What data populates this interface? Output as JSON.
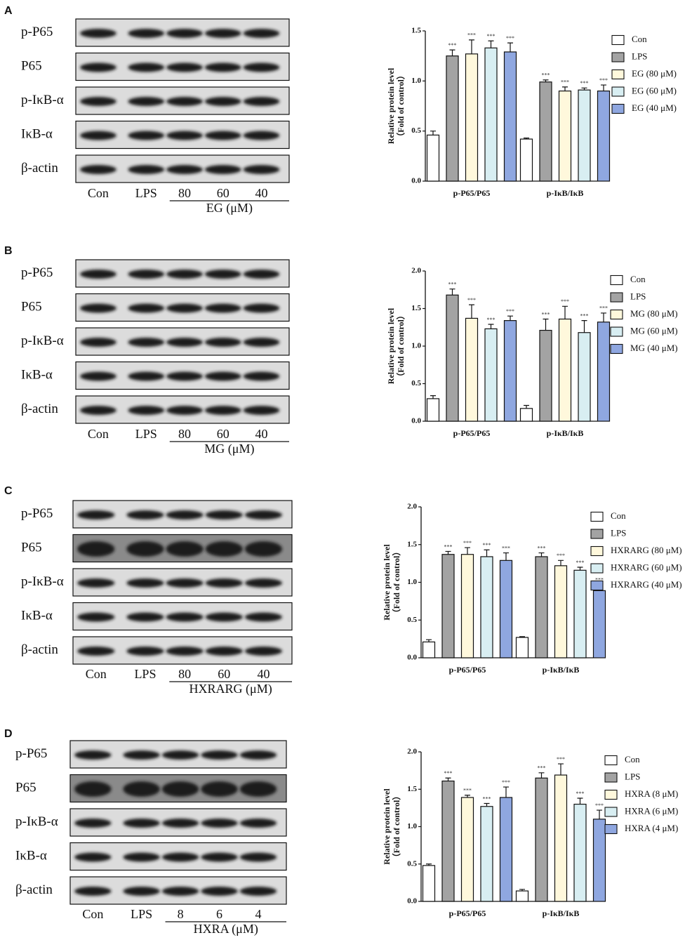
{
  "panels": [
    {
      "label": "A",
      "blot": {
        "rows": [
          "p-P65",
          "P65",
          "p-IκB-α",
          "IκB-α",
          "β-actin"
        ],
        "lanes": [
          "Con",
          "LPS",
          "80",
          "60",
          "40"
        ],
        "group": "EG (μM)"
      }
    },
    {
      "label": "B",
      "blot": {
        "rows": [
          "p-P65",
          "P65",
          "p-IκB-α",
          "IκB-α",
          "β-actin"
        ],
        "lanes": [
          "Con",
          "LPS",
          "80",
          "60",
          "40"
        ],
        "group": "MG (μM)"
      }
    },
    {
      "label": "C",
      "blot": {
        "rows": [
          "p-P65",
          "P65",
          "p-IκB-α",
          "IκB-α",
          "β-actin"
        ],
        "lanes": [
          "Con",
          "LPS",
          "80",
          "60",
          "40"
        ],
        "group": "HXRARG (μM)"
      }
    },
    {
      "label": "D",
      "blot": {
        "rows": [
          "p-P65",
          "P65",
          "p-IκB-α",
          "IκB-α",
          "β-actin"
        ],
        "lanes": [
          "Con",
          "LPS",
          "8",
          "6",
          "4"
        ],
        "group": "HXRA (μM)"
      }
    }
  ],
  "chart_data": [
    {
      "type": "bar",
      "y_label": [
        "Relative protein level",
        "（Fold of control）"
      ],
      "categories": [
        "p-P65/P65",
        "p-IκB/IκB"
      ],
      "ylim": [
        0,
        1.5
      ],
      "yticks": [
        {
          "value": 0,
          "label": "0.0"
        },
        {
          "value": 0.5,
          "label": "0.5"
        },
        {
          "value": 1,
          "label": "1.0"
        },
        {
          "value": 1.5,
          "label": "1.5"
        }
      ],
      "series": [
        {
          "name": "Con",
          "color": "#ffffff",
          "values": [
            0.46,
            0.42
          ],
          "errors": [
            0.04,
            0.01
          ]
        },
        {
          "name": "LPS",
          "color": "#a3a3a3",
          "values": [
            1.25,
            0.99
          ],
          "errors": [
            0.06,
            0.02
          ],
          "annotations": [
            "***",
            "***"
          ]
        },
        {
          "name": "EG (80 μM)",
          "color": "#fff8dc",
          "values": [
            1.27,
            0.9
          ],
          "errors": [
            0.14,
            0.04
          ],
          "annotations": [
            "***",
            "***"
          ]
        },
        {
          "name": "EG (60 μM)",
          "color": "#d8eef2",
          "values": [
            1.33,
            0.91
          ],
          "errors": [
            0.07,
            0.02
          ],
          "annotations": [
            "***",
            "***"
          ]
        },
        {
          "name": "EG (40 μM)",
          "color": "#8fa7e0",
          "values": [
            1.29,
            0.9
          ],
          "errors": [
            0.09,
            0.06
          ],
          "annotations": [
            "***",
            "***"
          ]
        }
      ]
    },
    {
      "type": "bar",
      "y_label": [
        "Relative protein level",
        "（Fold of control）"
      ],
      "categories": [
        "p-P65/P65",
        "p-IκB/IκB"
      ],
      "ylim": [
        0,
        2
      ],
      "yticks": [
        {
          "value": 0,
          "label": "0.0"
        },
        {
          "value": 0.5,
          "label": "0.5"
        },
        {
          "value": 1,
          "label": "1.0"
        },
        {
          "value": 1.5,
          "label": "1.5"
        },
        {
          "value": 2,
          "label": "2.0"
        }
      ],
      "series": [
        {
          "name": "Con",
          "color": "#ffffff",
          "values": [
            0.3,
            0.17
          ],
          "errors": [
            0.04,
            0.04
          ]
        },
        {
          "name": "LPS",
          "color": "#a3a3a3",
          "values": [
            1.68,
            1.21
          ],
          "errors": [
            0.08,
            0.15
          ],
          "annotations": [
            "***",
            "***"
          ]
        },
        {
          "name": "MG (80 μM)",
          "color": "#fff8dc",
          "values": [
            1.37,
            1.36
          ],
          "errors": [
            0.18,
            0.17
          ],
          "annotations": [
            "***",
            "***"
          ]
        },
        {
          "name": "MG (60 μM)",
          "color": "#d8eef2",
          "values": [
            1.23,
            1.18
          ],
          "errors": [
            0.06,
            0.16
          ],
          "annotations": [
            "***",
            "***"
          ]
        },
        {
          "name": "MG (40 μM)",
          "color": "#8fa7e0",
          "values": [
            1.34,
            1.32
          ],
          "errors": [
            0.06,
            0.12
          ],
          "annotations": [
            "***",
            "***"
          ]
        }
      ]
    },
    {
      "type": "bar",
      "y_label": [
        "Relative protein level",
        "（Fold of control）"
      ],
      "categories": [
        "p-P65/P65",
        "p-IκB/IκB"
      ],
      "ylim": [
        0,
        2
      ],
      "yticks": [
        {
          "value": 0,
          "label": "0.0"
        },
        {
          "value": 0.5,
          "label": "0.5"
        },
        {
          "value": 1,
          "label": "1.0"
        },
        {
          "value": 1.5,
          "label": "1.5"
        },
        {
          "value": 2,
          "label": "2.0"
        }
      ],
      "series": [
        {
          "name": "Con",
          "color": "#ffffff",
          "values": [
            0.21,
            0.27
          ],
          "errors": [
            0.03,
            0.01
          ]
        },
        {
          "name": "LPS",
          "color": "#a3a3a3",
          "values": [
            1.37,
            1.34
          ],
          "errors": [
            0.04,
            0.05
          ],
          "annotations": [
            "***",
            "***"
          ]
        },
        {
          "name": "HXRARG (80 μM)",
          "color": "#fff8dc",
          "values": [
            1.37,
            1.22
          ],
          "errors": [
            0.09,
            0.07
          ],
          "annotations": [
            "***",
            "***"
          ]
        },
        {
          "name": "HXRARG (60 μM)",
          "color": "#d8eef2",
          "values": [
            1.34,
            1.16
          ],
          "errors": [
            0.09,
            0.04
          ],
          "annotations": [
            "***",
            "***"
          ]
        },
        {
          "name": "HXRARG (40 μM)",
          "color": "#8fa7e0",
          "values": [
            1.29,
            0.89
          ],
          "errors": [
            0.1,
            0.08
          ],
          "annotations": [
            "***",
            "***"
          ]
        }
      ]
    },
    {
      "type": "bar",
      "y_label": [
        "Relative protein level",
        "（Fold of control）"
      ],
      "categories": [
        "p-P65/P65",
        "p-IκB/IκB"
      ],
      "ylim": [
        0,
        2
      ],
      "yticks": [
        {
          "value": 0,
          "label": "0.0"
        },
        {
          "value": 0.5,
          "label": "0.5"
        },
        {
          "value": 1,
          "label": "1.0"
        },
        {
          "value": 1.5,
          "label": "1.5"
        },
        {
          "value": 2,
          "label": "2.0"
        }
      ],
      "series": [
        {
          "name": "Con",
          "color": "#ffffff",
          "values": [
            0.48,
            0.14
          ],
          "errors": [
            0.02,
            0.02
          ]
        },
        {
          "name": "LPS",
          "color": "#a3a3a3",
          "values": [
            1.61,
            1.65
          ],
          "errors": [
            0.04,
            0.07
          ],
          "annotations": [
            "***",
            "***"
          ]
        },
        {
          "name": "HXRA (8 μM)",
          "color": "#fff8dc",
          "values": [
            1.39,
            1.69
          ],
          "errors": [
            0.03,
            0.15
          ],
          "annotations": [
            "***",
            "***"
          ]
        },
        {
          "name": "HXRA (6 μM)",
          "color": "#d8eef2",
          "values": [
            1.27,
            1.3
          ],
          "errors": [
            0.04,
            0.08
          ],
          "annotations": [
            "***",
            "***"
          ]
        },
        {
          "name": "HXRA (4 μM)",
          "color": "#8fa7e0",
          "values": [
            1.39,
            1.1
          ],
          "errors": [
            0.14,
            0.12
          ],
          "annotations": [
            "***",
            "***"
          ]
        }
      ]
    }
  ]
}
